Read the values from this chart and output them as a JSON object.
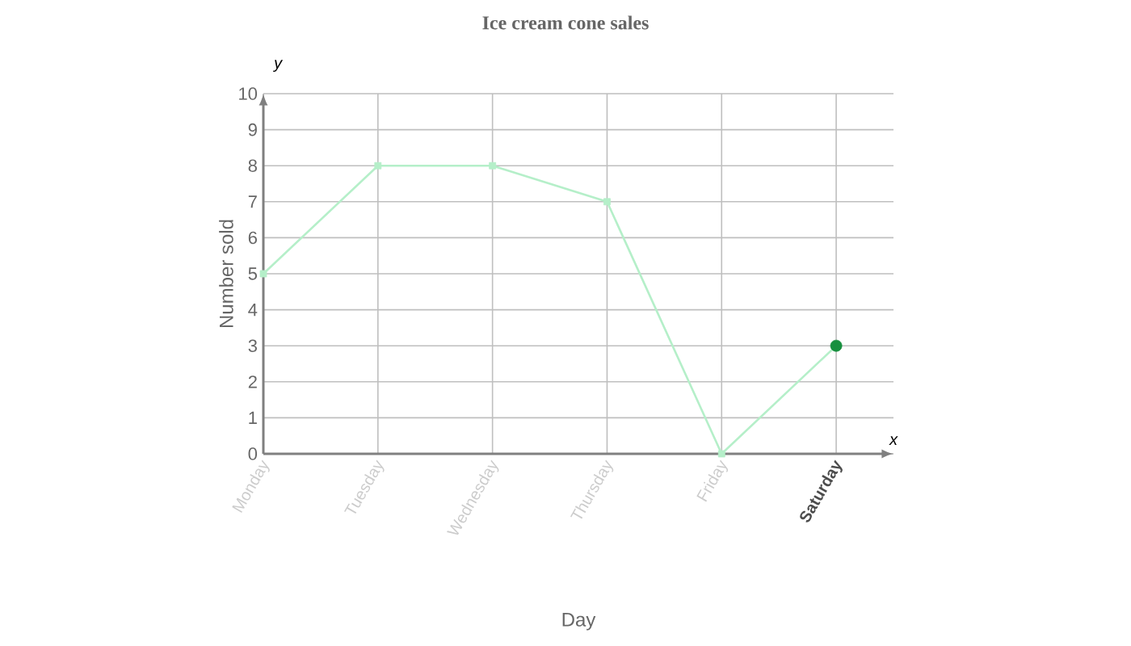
{
  "chart_data": {
    "type": "line",
    "title": "Ice cream cone sales",
    "xlabel": "Day",
    "ylabel": "Number sold",
    "categories": [
      "Monday",
      "Tuesday",
      "Wednesday",
      "Thursday",
      "Friday",
      "Saturday"
    ],
    "series": [
      {
        "color": "#b5efc9",
        "colors": [
          "#b5efc9",
          "#b5efc9",
          "#b5efc9",
          "#b5efc9",
          "#b5efc9",
          "#168f3e"
        ],
        "values": [
          5,
          8,
          8,
          7,
          0,
          3
        ]
      }
    ],
    "ylim": [
      0,
      10
    ],
    "yticks": [
      0,
      1,
      2,
      3,
      4,
      5,
      6,
      7,
      8,
      9,
      10
    ],
    "grid": true,
    "marker": "square",
    "annotations": [
      "x",
      "y"
    ]
  }
}
